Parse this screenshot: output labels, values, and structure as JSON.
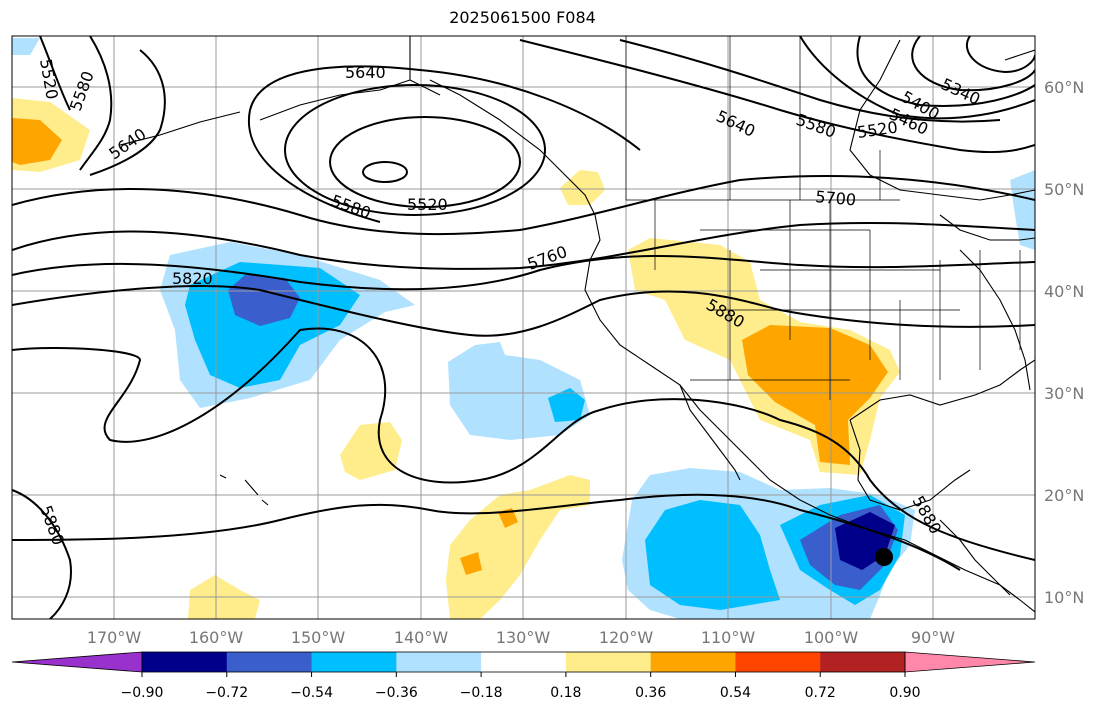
{
  "title": "2025061500 F084",
  "latitude_labels": [
    "60°N",
    "50°N",
    "40°N",
    "30°N",
    "20°N",
    "10°N"
  ],
  "longitude_labels": [
    "170°W",
    "160°W",
    "150°W",
    "140°W",
    "130°W",
    "120°W",
    "110°W",
    "100°W",
    "90°W"
  ],
  "colorbar": {
    "colors": [
      "#9932cc",
      "#00008b",
      "#3a5fcd",
      "#00bfff",
      "#b0e2ff",
      "#ffffff",
      "#ffec8b",
      "#ffa500",
      "#ff4500",
      "#b22222",
      "#ff88aa"
    ],
    "tick_labels": [
      "−0.90",
      "−0.72",
      "−0.54",
      "−0.36",
      "−0.18",
      "0.18",
      "0.36",
      "0.54",
      "0.72",
      "0.90"
    ]
  },
  "contour_labels": [
    "5520",
    "5580",
    "5640",
    "5640",
    "5580",
    "5520",
    "5640",
    "5580",
    "5520",
    "5460",
    "5400",
    "5340",
    "5700",
    "5760",
    "5820",
    "5880",
    "5880",
    "5880"
  ],
  "colors": {
    "contour": "#000000",
    "grid": "#999999",
    "coast": "#000000",
    "axis_label": "#777777"
  },
  "marker": {
    "label": "storm-center-marker"
  }
}
